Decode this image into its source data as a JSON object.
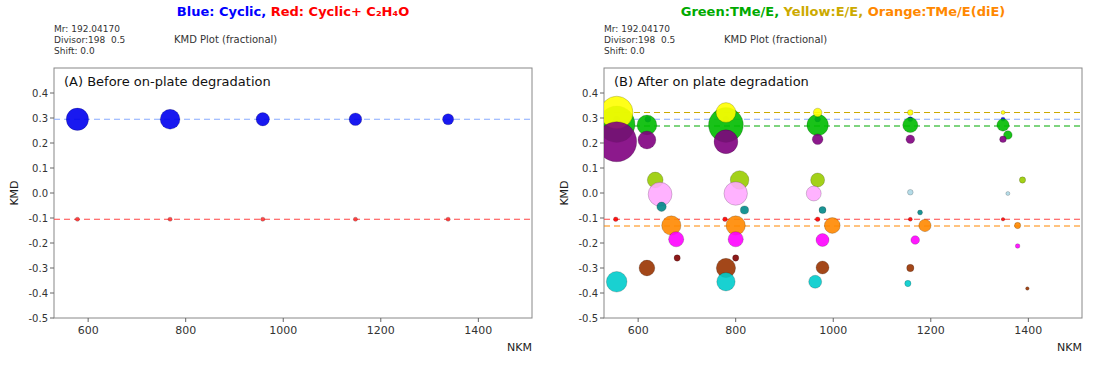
{
  "chart_data": [
    {
      "type": "scatter",
      "title": "(A) Before on-plate degradation",
      "header": [
        {
          "text": "Blue: Cyclic, ",
          "color": "#0000ff"
        },
        {
          "text": "Red: Cyclic+ C₂H₄O",
          "color": "#ff0000"
        }
      ],
      "meta_text": "Mr: 192.04170\nDivisor:198  0.5\nShift: 0.0",
      "plot_label": "KMD Plot (fractional)",
      "xlabel": "NKM",
      "ylabel": "KMD",
      "xlim": [
        530,
        1510
      ],
      "ylim": [
        -0.5,
        0.5
      ],
      "xticks": [
        600,
        800,
        1000,
        1200,
        1400
      ],
      "yticks": [
        -0.5,
        -0.4,
        -0.3,
        -0.2,
        -0.1,
        {
          "value": 0.0,
          "label": "0.0"
        },
        0.1,
        0.2,
        0.3,
        0.4
      ],
      "reference_lines": [
        {
          "value": 0.295,
          "color": "#88aaff",
          "line_style": "dashed"
        },
        {
          "value": -0.105,
          "color": "#ff4444",
          "line_style": "dashed"
        }
      ],
      "series": [
        {
          "color": "#0000ee",
          "x": [
            578,
            768,
            958,
            1148,
            1338
          ],
          "values": [
            0.295,
            0.295,
            0.295,
            0.295,
            0.295
          ],
          "sizes": [
            280,
            220,
            100,
            90,
            70
          ]
        },
        {
          "color": "#ff3333",
          "x": [
            578,
            768,
            958,
            1148,
            1338
          ],
          "values": [
            -0.105,
            -0.105,
            -0.105,
            -0.105,
            -0.105
          ],
          "sizes": [
            10,
            10,
            10,
            10,
            10
          ]
        }
      ]
    },
    {
      "type": "scatter",
      "title": "(B) After on plate degradation",
      "header": [
        {
          "text": "Green:TMe/E, ",
          "color": "#00aa00"
        },
        {
          "text": "Yellow:E/E, ",
          "color": "#ccaa00"
        },
        {
          "text": "Orange:TMe/E(diE)",
          "color": "#ff8800"
        }
      ],
      "meta_text": "Mr: 192.04170\nDivisor:198  0.5\nShift: 0.0",
      "plot_label": "KMD Plot (fractional)",
      "xlabel": "NKM",
      "ylabel": "KMD",
      "xlim": [
        530,
        1510
      ],
      "ylim": [
        -0.5,
        0.5
      ],
      "xticks": [
        600,
        800,
        1000,
        1200,
        1400
      ],
      "yticks": [
        -0.5,
        -0.4,
        -0.3,
        -0.2,
        -0.1,
        {
          "value": 0.0,
          "label": "0.0"
        },
        0.1,
        0.2,
        0.3,
        0.4
      ],
      "reference_lines": [
        {
          "value": 0.295,
          "color": "#88aaff",
          "line_style": "dashed"
        },
        {
          "value": -0.105,
          "color": "#ff4444",
          "line_style": "dashed"
        },
        {
          "value": 0.268,
          "color": "#00aa00",
          "line_style": "dashed"
        },
        {
          "value": 0.322,
          "color": "#ccaa00",
          "line_style": "dashed"
        },
        {
          "value": -0.132,
          "color": "#ff8800",
          "line_style": "dashed"
        }
      ],
      "series": [
        {
          "x": [
            556,
            556,
            556,
            556,
            620,
            618,
            618,
            635,
            645,
            648,
            668,
            678,
            680,
            618,
            556,
            780,
            780,
            780,
            780,
            808,
            800,
            818,
            800,
            800,
            800,
            780,
            780,
            968,
            968,
            968,
            968,
            960,
            978,
            998,
            978,
            978,
            963,
            1158,
            1158,
            1158,
            1158,
            1178,
            1188,
            1168,
            1158,
            1153,
            1348,
            1348,
            1358,
            1348,
            1388,
            1358,
            1378,
            1378,
            1398,
            778,
            554,
            968,
            1158,
            1348,
            968,
            1158,
            1348
          ],
          "values": [
            0.295,
            0.275,
            0.322,
            0.205,
            0.295,
            0.272,
            0.212,
            0.052,
            -0.005,
            -0.055,
            -0.13,
            -0.185,
            -0.26,
            -0.3,
            -0.355,
            0.295,
            0.272,
            0.322,
            0.205,
            0.052,
            -0.002,
            -0.068,
            -0.13,
            -0.185,
            -0.26,
            -0.3,
            -0.355,
            0.295,
            0.272,
            0.215,
            0.052,
            -0.002,
            -0.068,
            -0.13,
            -0.188,
            -0.298,
            -0.355,
            0.295,
            0.272,
            0.215,
            0.003,
            -0.078,
            -0.13,
            -0.188,
            -0.3,
            -0.362,
            0.295,
            0.272,
            0.232,
            0.215,
            0.052,
            -0.002,
            -0.13,
            -0.212,
            -0.382,
            -0.105,
            -0.105,
            -0.105,
            -0.105,
            -0.105,
            0.322,
            0.322,
            0.322
          ],
          "sizes": [
            25,
            750,
            600,
            900,
            20,
            220,
            180,
            140,
            320,
            50,
            210,
            130,
            22,
            140,
            240,
            20,
            680,
            220,
            320,
            195,
            310,
            38,
            210,
            130,
            22,
            210,
            190,
            18,
            260,
            65,
            110,
            125,
            28,
            140,
            95,
            95,
            95,
            14,
            130,
            42,
            18,
            14,
            85,
            42,
            30,
            22,
            10,
            85,
            42,
            25,
            22,
            9,
            22,
            12,
            7,
            12,
            12,
            12,
            9,
            7,
            42,
            18,
            9
          ],
          "colors": [
            "#0000ff",
            "#00bb00",
            "#ffff00",
            "#800080",
            "#0000ff",
            "#00bb00",
            "#800080",
            "#99cc00",
            "#ffaaff",
            "#008888",
            "#ff8800",
            "#ff00ff",
            "#800000",
            "#993300",
            "#00cccc",
            "#0000ff",
            "#00bb00",
            "#ffff00",
            "#800080",
            "#99cc00",
            "#ffaaff",
            "#008888",
            "#ff8800",
            "#ff00ff",
            "#800000",
            "#993300",
            "#00cccc",
            "#0000ff",
            "#00bb00",
            "#800080",
            "#99cc00",
            "#ffaaff",
            "#008888",
            "#ff8800",
            "#ff00ff",
            "#993300",
            "#00cccc",
            "#0000ff",
            "#00bb00",
            "#800080",
            "#add8e6",
            "#008888",
            "#ff8800",
            "#ff00ff",
            "#993300",
            "#00cccc",
            "#0000ff",
            "#00bb00",
            "#00bb00",
            "#800080",
            "#99cc00",
            "#add8e6",
            "#ff8800",
            "#ff00ff",
            "#993300",
            "#ff0000",
            "#ff0000",
            "#ff0000",
            "#ff0000",
            "#ff0000",
            "#ffff00",
            "#ffff00",
            "#ffff00"
          ]
        }
      ]
    }
  ]
}
